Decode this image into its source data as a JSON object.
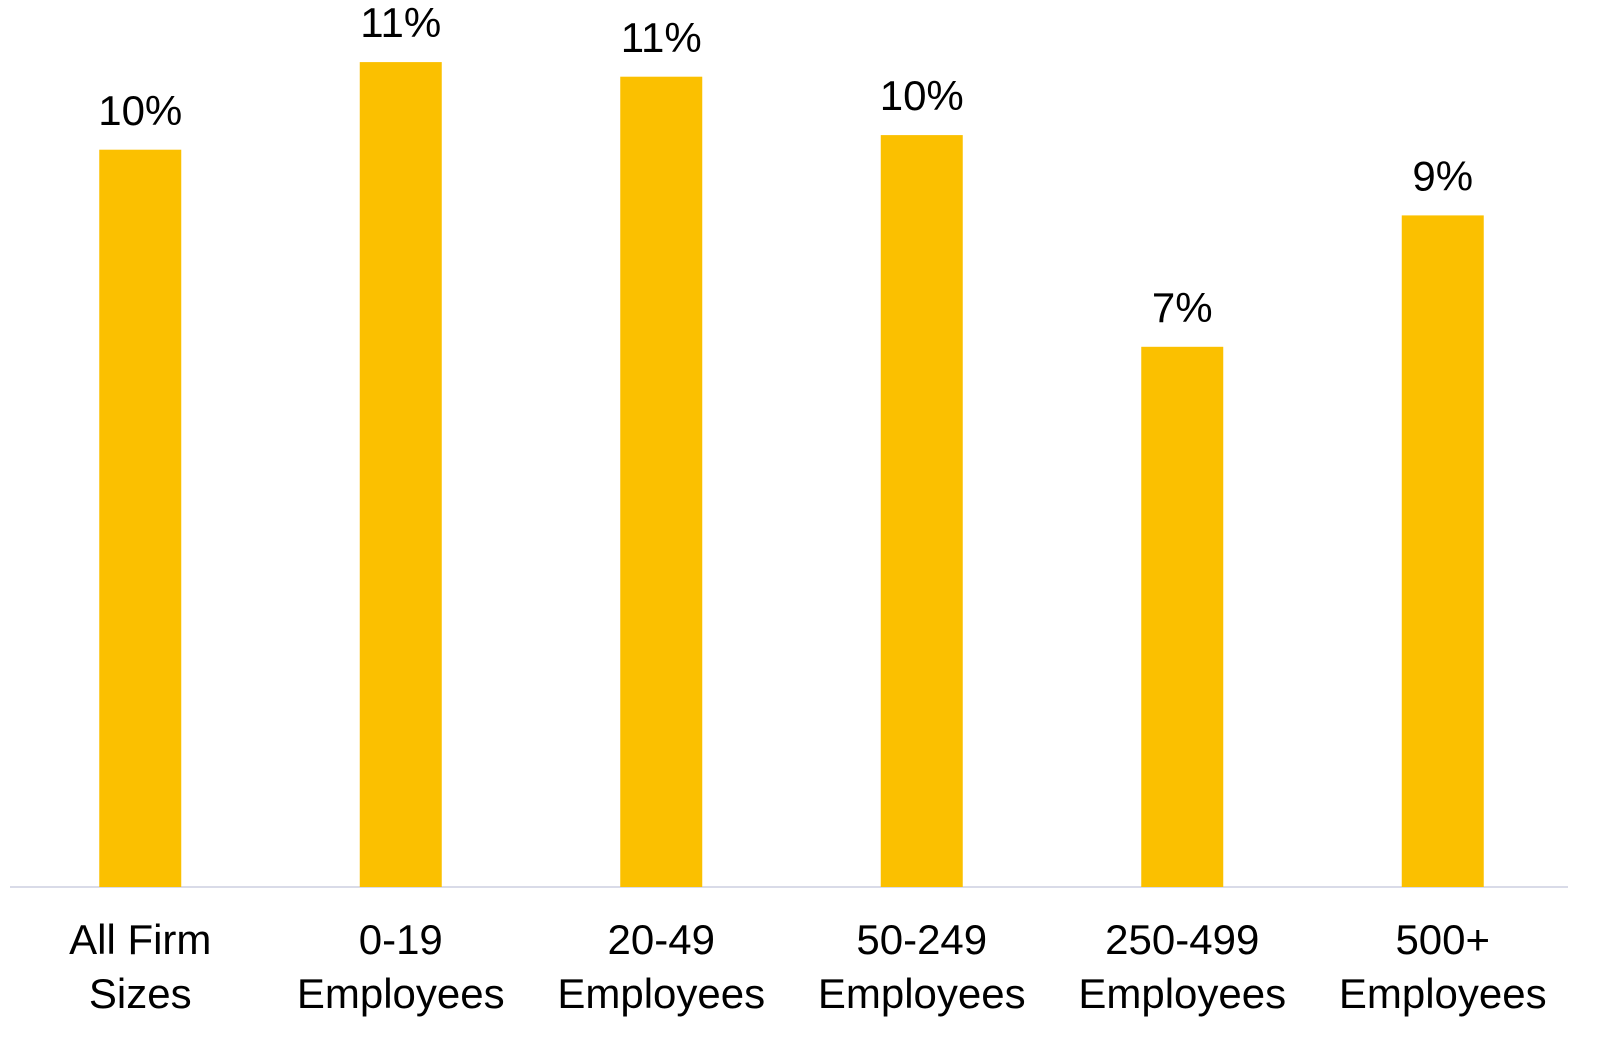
{
  "chart_data": {
    "type": "bar",
    "categories": [
      [
        "All Firm",
        "Sizes"
      ],
      [
        "0-19",
        "Employees"
      ],
      [
        "20-49",
        "Employees"
      ],
      [
        "50-249",
        "Employees"
      ],
      [
        "250-499",
        "Employees"
      ],
      [
        "500+",
        "Employees"
      ]
    ],
    "values": [
      10.1,
      11.3,
      11.1,
      10.3,
      7.4,
      9.2
    ],
    "value_labels": [
      "10%",
      "11%",
      "11%",
      "10%",
      "7%",
      "9%"
    ],
    "color": "#fbc000",
    "ylim": [
      0,
      12
    ]
  }
}
